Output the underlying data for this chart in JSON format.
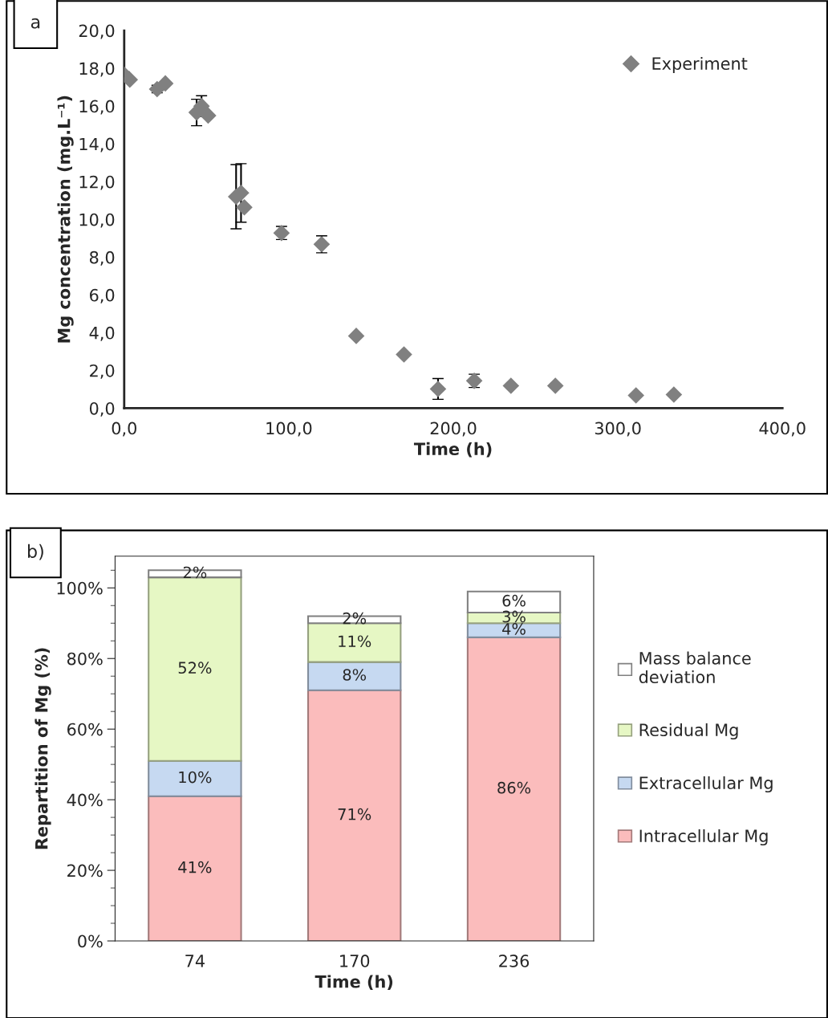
{
  "chart_data": [
    {
      "type": "scatter",
      "xlabel": "Time (h)",
      "ylabel": "Mg concentration (mg.L⁻¹)",
      "annotations": [
        "a"
      ],
      "x": [
        0,
        3.4,
        20,
        25,
        44,
        47,
        51,
        68,
        71,
        73,
        95.6,
        120,
        141,
        170,
        190.7,
        212.7,
        235,
        262,
        311,
        334
      ],
      "series": [
        {
          "name": "Experiment",
          "color": "#808080",
          "marker": "diamond",
          "values": [
            17.66,
            17.4,
            16.9,
            17.2,
            15.66,
            16.0,
            15.5,
            11.2,
            11.4,
            10.64,
            9.28,
            8.68,
            3.83,
            2.85,
            1.02,
            1.45,
            1.19,
            1.19,
            0.68,
            0.72
          ],
          "errors": [
            0.15,
            null,
            0.2,
            null,
            0.7,
            0.55,
            null,
            1.7,
            1.55,
            null,
            0.35,
            0.45,
            null,
            null,
            0.55,
            0.35,
            null,
            null,
            null,
            null
          ]
        }
      ],
      "xlim": [
        0,
        400
      ],
      "ylim": [
        0,
        20
      ],
      "xticks": [
        {
          "value": 0,
          "label": "0,0"
        },
        {
          "value": 100,
          "label": "100,0"
        },
        {
          "value": 200,
          "label": "200,0"
        },
        {
          "value": 300,
          "label": "300,0"
        },
        {
          "value": 400,
          "label": "400,0"
        }
      ],
      "yticks": [
        {
          "value": 0,
          "label": "0,0"
        },
        {
          "value": 2,
          "label": "2,0"
        },
        {
          "value": 4,
          "label": "4,0"
        },
        {
          "value": 6,
          "label": "6,0"
        },
        {
          "value": 8,
          "label": "8,0"
        },
        {
          "value": 10,
          "label": "10,0"
        },
        {
          "value": 12,
          "label": "12,0"
        },
        {
          "value": 14,
          "label": "14,0"
        },
        {
          "value": 16,
          "label": "16,0"
        },
        {
          "value": 18,
          "label": "18,0"
        },
        {
          "value": 20,
          "label": "20,0"
        }
      ],
      "grid": false,
      "legend": "top right"
    },
    {
      "type": "bar",
      "stacked": true,
      "xlabel": "Time (h)",
      "ylabel": "Repartition of Mg (%)",
      "annotations": [
        "b)"
      ],
      "categories": [
        "74",
        "170",
        "236"
      ],
      "series": [
        {
          "name": "Intracellular Mg",
          "color": "#fbbcbc",
          "values": [
            41,
            71,
            86
          ],
          "value_labels": [
            "41%",
            "71%",
            "86%"
          ]
        },
        {
          "name": "Extracellular Mg",
          "color": "#c6d9f1",
          "values": [
            10,
            8,
            4
          ],
          "value_labels": [
            "10%",
            "8%",
            "4%"
          ]
        },
        {
          "name": "Residual Mg",
          "color": "#e6f7c4",
          "values": [
            52,
            11,
            3
          ],
          "value_labels": [
            "52%",
            "11%",
            "3%"
          ]
        },
        {
          "name": "Mass balance deviation",
          "color": "#ffffff",
          "values": [
            2,
            2,
            6
          ],
          "value_labels": [
            "2%",
            "2%",
            "6%"
          ]
        }
      ],
      "ylim": [
        0,
        109
      ],
      "yticks": [
        {
          "value": 0,
          "label": "0%"
        },
        {
          "value": 20,
          "label": "20%"
        },
        {
          "value": 40,
          "label": "40%"
        },
        {
          "value": 60,
          "label": "60%"
        },
        {
          "value": 80,
          "label": "80%"
        },
        {
          "value": 100,
          "label": "100%"
        }
      ],
      "grid": false,
      "legend": "right"
    }
  ]
}
